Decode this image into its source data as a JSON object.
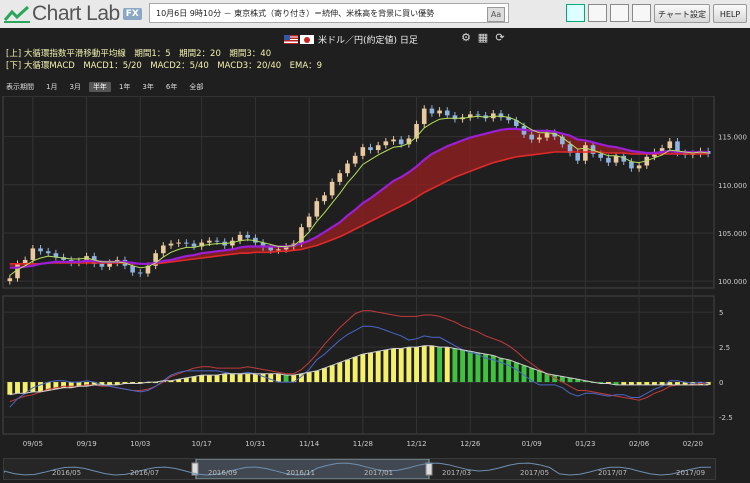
{
  "app": {
    "brand": "Chart Lab",
    "badge": "FX"
  },
  "ticker": {
    "text": "10月6日 9時10分 － 東京株式（寄り付き）＝続伸、米株高を背景に買い優勢",
    "aa": "Aa"
  },
  "toolbar": {
    "settings_label": "チャート設定",
    "help_label": "HELP"
  },
  "pair": {
    "title": "米ドル／円(約定値) 日足"
  },
  "legend": {
    "upper": "[上] 大循環指数平滑移動平均線　期間1：5　期間2：20　期間3：40",
    "lower": "[下] 大循環MACD　MACD1：5/20　MACD2：5/40　MACD3：20/40　EMA：9"
  },
  "periods": {
    "label": "表示期間",
    "items": [
      "1月",
      "3月",
      "半年",
      "1年",
      "3年",
      "6年",
      "全部"
    ],
    "selected": "半年"
  },
  "colors": {
    "up": "#e9c9a0",
    "down": "#8fb4e0",
    "ema_short": "#b5e05b",
    "ema_mid": "#9b1fd6",
    "ema_long": "#e02a2a",
    "band": "#8a2020",
    "macd_line": "#4a67c9",
    "signal_line": "#c23b3b",
    "hist_yellow": "#f5f06a",
    "hist_green": "#3fc23f",
    "accent": "#8aa7c4"
  },
  "chart_data": [
    {
      "type": "candlestick",
      "title": "米ドル／円(約定値) 日足",
      "ylim": [
        99.5,
        119
      ],
      "y_ticks": [
        "115.000",
        "110.000",
        "105.000",
        "100.000"
      ],
      "y_tick_values": [
        115,
        110,
        105,
        100
      ],
      "x_ticks": [
        "09/05",
        "09/19",
        "10/03",
        "10/17",
        "10/31",
        "11/14",
        "11/28",
        "12/12",
        "12/26",
        "01/09",
        "01/23",
        "02/06",
        "02/20"
      ],
      "close": [
        100.3,
        101.8,
        102.2,
        103.4,
        103.1,
        102.9,
        102.5,
        102.2,
        101.9,
        102.1,
        102.6,
        101.8,
        101.5,
        101.9,
        102.2,
        101.6,
        100.9,
        100.8,
        101.6,
        102.9,
        103.7,
        103.9,
        104.0,
        103.9,
        103.6,
        104.0,
        104.2,
        104.1,
        103.7,
        104.2,
        104.8,
        104.5,
        104.0,
        103.5,
        103.2,
        103.3,
        103.6,
        103.9,
        105.6,
        106.7,
        108.3,
        108.9,
        110.3,
        111.2,
        112.2,
        113.0,
        113.9,
        113.6,
        114.1,
        114.5,
        114.7,
        114.2,
        114.8,
        116.3,
        117.9,
        117.4,
        117.7,
        117.2,
        116.8,
        117.0,
        117.3,
        117.2,
        116.9,
        117.4,
        117.0,
        116.7,
        116.1,
        115.2,
        114.7,
        114.9,
        115.4,
        115.0,
        114.2,
        113.3,
        112.5,
        114.1,
        113.2,
        112.8,
        112.3,
        113.0,
        112.4,
        111.7,
        112.0,
        112.9,
        113.4,
        113.8,
        114.5,
        113.3,
        113.1,
        113.2,
        113.5,
        113.2
      ],
      "series": [
        {
          "name": "EMA5",
          "values": [
            100.6,
            101.2,
            101.6,
            102.1,
            102.4,
            102.6,
            102.5,
            102.4,
            102.3,
            102.3,
            102.4,
            102.2,
            102.0,
            102.0,
            102.0,
            101.9,
            101.6,
            101.4,
            101.5,
            101.9,
            102.5,
            103.0,
            103.3,
            103.5,
            103.5,
            103.7,
            103.8,
            103.9,
            103.9,
            104.0,
            104.2,
            104.3,
            104.2,
            104.0,
            103.8,
            103.6,
            103.6,
            103.7,
            104.3,
            105.1,
            106.2,
            107.1,
            108.1,
            109.1,
            110.2,
            111.1,
            112.1,
            112.6,
            113.1,
            113.5,
            113.9,
            114.0,
            114.3,
            115.0,
            115.9,
            116.4,
            116.8,
            116.9,
            116.9,
            116.9,
            117.0,
            117.1,
            117.0,
            117.1,
            117.1,
            117.0,
            116.7,
            116.2,
            115.7,
            115.4,
            115.4,
            115.3,
            114.9,
            114.3,
            113.7,
            113.8,
            113.6,
            113.3,
            113.0,
            113.0,
            112.8,
            112.4,
            112.3,
            112.5,
            112.8,
            113.1,
            113.6,
            113.5,
            113.4,
            113.3,
            113.4,
            113.3
          ]
        },
        {
          "name": "EMA20",
          "values": [
            101.4,
            101.4,
            101.5,
            101.6,
            101.8,
            101.9,
            102.0,
            102.0,
            102.0,
            102.0,
            102.1,
            102.1,
            102.0,
            102.0,
            102.0,
            102.0,
            101.9,
            101.8,
            101.8,
            101.9,
            102.1,
            102.2,
            102.4,
            102.6,
            102.7,
            102.9,
            103.0,
            103.1,
            103.2,
            103.3,
            103.5,
            103.6,
            103.6,
            103.6,
            103.6,
            103.6,
            103.6,
            103.7,
            103.9,
            104.2,
            104.6,
            105.1,
            105.6,
            106.1,
            106.8,
            107.4,
            108.1,
            108.6,
            109.2,
            109.8,
            110.4,
            110.8,
            111.3,
            111.9,
            112.6,
            113.2,
            113.6,
            114.0,
            114.3,
            114.6,
            114.9,
            115.1,
            115.3,
            115.5,
            115.7,
            115.8,
            115.8,
            115.7,
            115.6,
            115.6,
            115.6,
            115.5,
            115.3,
            115.1,
            114.7,
            114.6,
            114.4,
            114.2,
            114.0,
            113.9,
            113.7,
            113.5,
            113.4,
            113.3,
            113.3,
            113.4,
            113.5,
            113.4,
            113.4,
            113.4,
            113.4,
            113.4
          ]
        },
        {
          "name": "EMA40",
          "values": [
            101.8,
            101.8,
            101.8,
            101.8,
            101.8,
            101.9,
            101.9,
            101.9,
            101.9,
            101.9,
            101.9,
            101.9,
            101.9,
            101.9,
            101.9,
            101.9,
            101.8,
            101.8,
            101.8,
            101.8,
            101.9,
            102.0,
            102.1,
            102.2,
            102.3,
            102.4,
            102.5,
            102.6,
            102.7,
            102.8,
            102.9,
            102.9,
            103.0,
            103.0,
            103.0,
            103.1,
            103.1,
            103.2,
            103.3,
            103.5,
            103.7,
            104.0,
            104.3,
            104.6,
            105.0,
            105.4,
            105.8,
            106.2,
            106.6,
            107.0,
            107.4,
            107.8,
            108.2,
            108.7,
            109.2,
            109.6,
            110.0,
            110.4,
            110.8,
            111.1,
            111.4,
            111.7,
            112.0,
            112.3,
            112.5,
            112.7,
            112.9,
            113.0,
            113.1,
            113.2,
            113.3,
            113.4,
            113.4,
            113.4,
            113.4,
            113.4,
            113.4,
            113.4,
            113.3,
            113.3,
            113.3,
            113.2,
            113.2,
            113.2,
            113.2,
            113.2,
            113.2,
            113.2,
            113.2,
            113.2,
            113.2,
            113.2
          ]
        }
      ]
    },
    {
      "type": "bar",
      "title": "大循環MACD",
      "ylim": [
        -3.5,
        5.8
      ],
      "y_ticks": [
        "5",
        "2.5",
        "0",
        "-2.5"
      ],
      "y_tick_values": [
        5,
        2.5,
        0,
        -2.5
      ],
      "series": [
        {
          "name": "MACD1",
          "values": [
            -1.8,
            -1.2,
            -0.8,
            -0.4,
            -0.2,
            0.0,
            0.1,
            0.1,
            0.0,
            0.0,
            0.1,
            0.0,
            -0.2,
            -0.3,
            -0.4,
            -0.5,
            -0.6,
            -0.7,
            -0.6,
            -0.3,
            0.1,
            0.5,
            0.7,
            0.8,
            0.8,
            0.8,
            0.8,
            0.8,
            0.7,
            0.6,
            0.6,
            0.7,
            0.6,
            0.4,
            0.2,
            0.0,
            0.0,
            0.0,
            0.4,
            0.9,
            1.6,
            2.0,
            2.5,
            3.0,
            3.4,
            3.7,
            4.0,
            4.0,
            3.9,
            3.7,
            3.5,
            3.3,
            3.0,
            3.1,
            3.3,
            3.2,
            3.2,
            2.9,
            2.6,
            2.3,
            2.1,
            2.0,
            1.7,
            1.6,
            1.4,
            1.2,
            0.9,
            0.5,
            0.1,
            -0.2,
            -0.2,
            -0.2,
            -0.4,
            -0.8,
            -1.0,
            -0.8,
            -0.8,
            -0.9,
            -1.0,
            -0.9,
            -0.9,
            -1.1,
            -1.1,
            -0.8,
            -0.5,
            -0.3,
            0.1,
            0.1,
            0.0,
            -0.1,
            0.0,
            -0.1
          ]
        },
        {
          "name": "MACD2",
          "values": [
            -1.4,
            -1.2,
            -1.0,
            -0.9,
            -0.7,
            -0.5,
            -0.4,
            -0.3,
            -0.3,
            -0.3,
            -0.2,
            -0.2,
            -0.3,
            -0.3,
            -0.4,
            -0.5,
            -0.6,
            -0.6,
            -0.5,
            -0.3,
            0.0,
            0.4,
            0.6,
            0.8,
            1.0,
            1.1,
            1.1,
            1.0,
            1.0,
            1.0,
            1.0,
            1.1,
            1.0,
            0.9,
            0.8,
            0.7,
            0.6,
            0.6,
            0.9,
            1.4,
            2.0,
            2.7,
            3.3,
            3.9,
            4.4,
            4.9,
            5.1,
            5.1,
            5.0,
            4.9,
            4.8,
            4.7,
            4.7,
            4.7,
            4.8,
            4.8,
            4.7,
            4.5,
            4.3,
            4.0,
            3.8,
            3.6,
            3.3,
            3.1,
            2.9,
            2.6,
            2.2,
            1.7,
            1.3,
            0.9,
            0.6,
            0.3,
            0.0,
            -0.3,
            -0.6,
            -0.6,
            -0.7,
            -0.8,
            -0.9,
            -1.0,
            -1.1,
            -1.2,
            -1.3,
            -1.1,
            -0.8,
            -0.6,
            -0.3,
            -0.2,
            -0.2,
            -0.2,
            -0.1,
            -0.1
          ]
        },
        {
          "name": "MACD3",
          "values": [
            -0.9,
            -0.8,
            -0.8,
            -0.7,
            -0.7,
            -0.6,
            -0.5,
            -0.4,
            -0.4,
            -0.3,
            -0.3,
            -0.2,
            -0.2,
            -0.2,
            -0.2,
            -0.1,
            -0.1,
            -0.1,
            0.0,
            0.0,
            0.1,
            0.1,
            0.2,
            0.3,
            0.4,
            0.5,
            0.5,
            0.5,
            0.6,
            0.6,
            0.6,
            0.6,
            0.6,
            0.6,
            0.6,
            0.6,
            0.5,
            0.5,
            0.6,
            0.7,
            0.8,
            1.0,
            1.2,
            1.4,
            1.6,
            1.8,
            2.0,
            2.1,
            2.2,
            2.3,
            2.4,
            2.4,
            2.5,
            2.5,
            2.6,
            2.6,
            2.5,
            2.5,
            2.4,
            2.3,
            2.2,
            2.1,
            2.0,
            1.9,
            1.7,
            1.6,
            1.4,
            1.2,
            1.0,
            0.8,
            0.6,
            0.5,
            0.4,
            0.3,
            0.2,
            0.1,
            0.0,
            -0.1,
            -0.1,
            -0.2,
            -0.2,
            -0.2,
            -0.2,
            -0.2,
            -0.2,
            -0.2,
            -0.2,
            -0.2,
            -0.2,
            -0.2,
            -0.2,
            -0.2
          ]
        }
      ]
    }
  ],
  "navigator": {
    "labels": [
      "2016/05",
      "2016/07",
      "2016/09",
      "2016/11",
      "2017/01",
      "2017/03",
      "2017/05",
      "2017/07",
      "2017/09"
    ]
  }
}
